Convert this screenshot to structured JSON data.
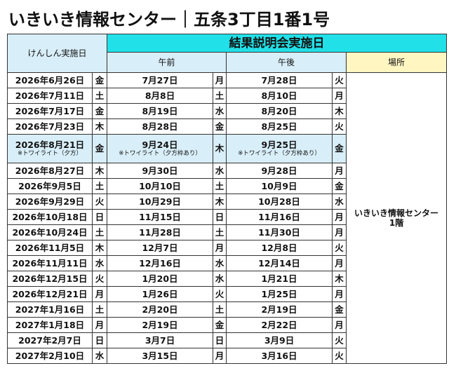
{
  "title": "いきいき情報センター｜五条3丁目1番1号",
  "header": {
    "checkup": "けんしん実施日",
    "results": "結果説明会実施日",
    "am": "午前",
    "pm": "午後",
    "place": "場所"
  },
  "place": [
    "いきいき情報センター",
    "1階"
  ],
  "rows": [
    {
      "date": "2026年6月26日",
      "wd": "金",
      "am": "7月27日",
      "am_wd": "月",
      "pm": "7月28日",
      "pm_wd": "火"
    },
    {
      "date": "2026年7月11日",
      "wd": "土",
      "am": "8月8日",
      "am_wd": "土",
      "pm": "8月10日",
      "pm_wd": "月"
    },
    {
      "date": "2026年7月17日",
      "wd": "金",
      "am": "8月19日",
      "am_wd": "水",
      "pm": "8月20日",
      "pm_wd": "木"
    },
    {
      "date": "2026年7月23日",
      "wd": "木",
      "am": "8月28日",
      "am_wd": "金",
      "pm": "8月25日",
      "pm_wd": "火"
    },
    {
      "date": "2026年8月21日",
      "date_note": "※トワイライト（夕方）",
      "wd": "金",
      "am": "9月24日",
      "am_note": "※トワイライト（夕方枠あり）",
      "am_wd": "木",
      "pm": "9月25日",
      "pm_note": "※トワイライト（夕方枠あり）",
      "pm_wd": "金"
    },
    {
      "date": "2026年8月27日",
      "wd": "木",
      "am": "9月30日",
      "am_wd": "水",
      "pm": "9月28日",
      "pm_wd": "月"
    },
    {
      "date": "2026年9月5日",
      "wd": "土",
      "am": "10月10日",
      "am_wd": "土",
      "pm": "10月9日",
      "pm_wd": "金"
    },
    {
      "date": "2026年9月29日",
      "wd": "火",
      "am": "10月29日",
      "am_wd": "木",
      "pm": "10月28日",
      "pm_wd": "水"
    },
    {
      "date": "2026年10月18日",
      "wd": "日",
      "am": "11月15日",
      "am_wd": "日",
      "pm": "11月16日",
      "pm_wd": "月"
    },
    {
      "date": "2026年10月24日",
      "wd": "土",
      "am": "11月28日",
      "am_wd": "土",
      "pm": "11月30日",
      "pm_wd": "月"
    },
    {
      "date": "2026年11月5日",
      "wd": "木",
      "am": "12月7日",
      "am_wd": "月",
      "pm": "12月8日",
      "pm_wd": "火"
    },
    {
      "date": "2026年11月11日",
      "wd": "水",
      "am": "12月16日",
      "am_wd": "水",
      "pm": "12月14日",
      "pm_wd": "月"
    },
    {
      "date": "2026年12月15日",
      "wd": "火",
      "am": "1月20日",
      "am_wd": "水",
      "pm": "1月21日",
      "pm_wd": "木"
    },
    {
      "date": "2026年12月21日",
      "wd": "月",
      "am": "1月26日",
      "am_wd": "火",
      "pm": "1月25日",
      "pm_wd": "月"
    },
    {
      "date": "2027年1月16日",
      "wd": "土",
      "am": "2月20日",
      "am_wd": "土",
      "pm": "2月19日",
      "pm_wd": "金"
    },
    {
      "date": "2027年1月18日",
      "wd": "月",
      "am": "2月19日",
      "am_wd": "金",
      "pm": "2月22日",
      "pm_wd": "月"
    },
    {
      "date": "2027年2月7日",
      "wd": "日",
      "am": "3月7日",
      "am_wd": "日",
      "pm": "3月9日",
      "pm_wd": "火"
    },
    {
      "date": "2027年2月10日",
      "wd": "水",
      "am": "3月15日",
      "am_wd": "月",
      "pm": "3月16日",
      "pm_wd": "火"
    }
  ]
}
